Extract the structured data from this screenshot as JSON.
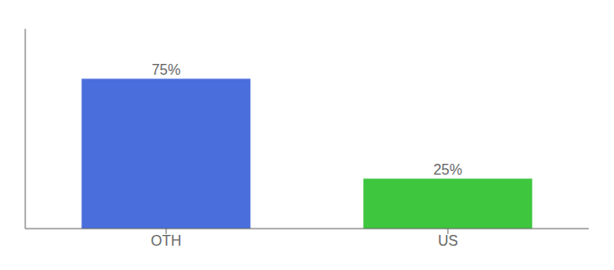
{
  "chart_data": {
    "type": "bar",
    "categories": [
      "OTH",
      "US"
    ],
    "values": [
      75,
      25
    ],
    "value_labels": [
      "75%",
      "25%"
    ],
    "colors": [
      "#4a6edb",
      "#3ec63e"
    ],
    "ylim": [
      0,
      100
    ],
    "data_labels": true,
    "tick_labels": "x"
  }
}
